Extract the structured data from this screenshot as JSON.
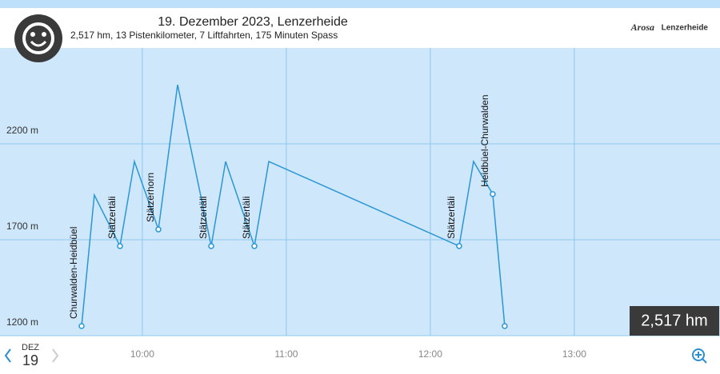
{
  "header": {
    "title": "19. Dezember 2023, Lenzerheide",
    "subtitle": "2,517 hm, 13 Pistenkilometer, 7 Liftfahrten, 175 Minuten Spass",
    "logo_left": "Arosa",
    "logo_right": "Lenzerheide"
  },
  "badge": "2,517 hm",
  "footer": {
    "month": "DEZ",
    "day": "19"
  },
  "chart_data": {
    "type": "line",
    "x": [
      574.7,
      580,
      590.7,
      596.7,
      606.7,
      614.7,
      628.7,
      634.7,
      646.7,
      652.7,
      732,
      738,
      746,
      751
    ],
    "series": [
      {
        "color": "#2a97d4",
        "values": [
          1250,
          1933,
          1667,
          2108,
          1754,
          2508,
          1667,
          2108,
          1667,
          2108,
          1667,
          2108,
          1938,
          1250
        ],
        "point_labels": [
          "Churwalden-Heidbüel",
          null,
          "Stätzertäli",
          null,
          "Stätzerhorn",
          null,
          "Stätzertäli",
          null,
          "Stätzertäli",
          null,
          "Stätzertäli",
          null,
          "Heidbüel-Churwalden",
          null
        ]
      }
    ],
    "xlim": [
      540.7,
      840.7
    ],
    "ylim": [
      1200,
      2700
    ],
    "xticks": [
      {
        "value": 600,
        "label": "10:00"
      },
      {
        "value": 660,
        "label": "11:00"
      },
      {
        "value": 720,
        "label": "12:00"
      },
      {
        "value": 780,
        "label": "13:00"
      }
    ],
    "yticks": [
      {
        "value": 1200,
        "label": "1200 m"
      },
      {
        "value": 1700,
        "label": "1700 m"
      },
      {
        "value": 2200,
        "label": "2200 m"
      }
    ],
    "grid": true
  }
}
